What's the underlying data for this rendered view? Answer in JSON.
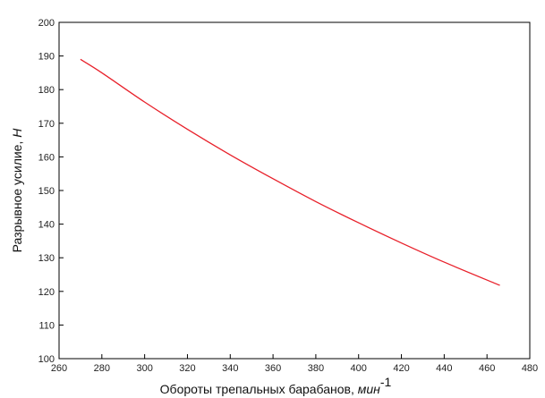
{
  "chart_data": {
    "type": "line",
    "title": "",
    "xlabel_main": "Обороты трепальных барабанов, ",
    "xlabel_unit": "мин",
    "xlabel_exp": "-1",
    "ylabel_main": "Разрывное усилие, ",
    "ylabel_unit": "Н",
    "xlim": [
      260,
      480
    ],
    "ylim": [
      100,
      200
    ],
    "xticks": [
      260,
      280,
      300,
      320,
      340,
      360,
      380,
      400,
      420,
      440,
      460,
      480
    ],
    "yticks": [
      100,
      110,
      120,
      130,
      140,
      150,
      160,
      170,
      180,
      190,
      200
    ],
    "grid": false,
    "series": [
      {
        "color": "#e8202a",
        "x": [
          270,
          280,
          300,
          320,
          340,
          360,
          380,
          400,
          420,
          440,
          466
        ],
        "y": [
          189,
          185,
          176.3,
          168.2,
          160.6,
          153.5,
          146.7,
          140.4,
          134.4,
          128.7,
          121.8
        ]
      }
    ]
  }
}
